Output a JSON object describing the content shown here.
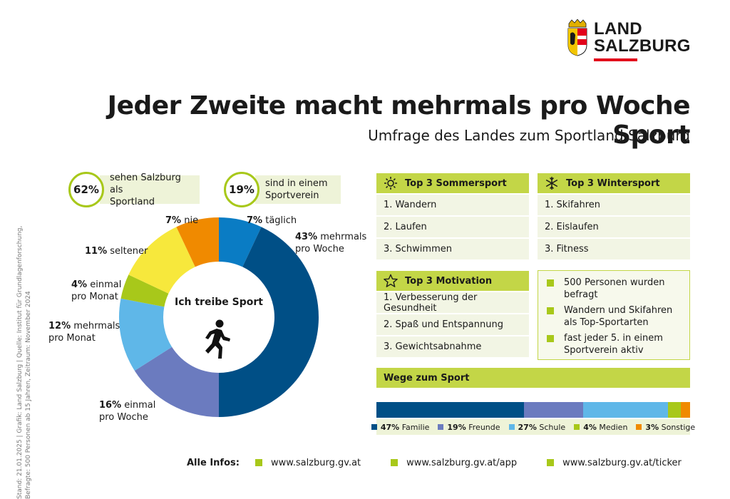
{
  "logo": {
    "line1": "LAND",
    "line2": "SALZBURG"
  },
  "header": {
    "title": "Jeder Zweite macht mehrmals pro Woche Sport",
    "subtitle": "Umfrage des Landes zum Sportland Salzburg"
  },
  "credit": {
    "line1": "Stand: 21.01.2025 | Grafik: Land Salzburg | Quelle: Institut für Grundlagenforschung,",
    "line2": "Befragte: 500 Personen ab 15 Jahren, Zeitraum: November 2024"
  },
  "stats": [
    {
      "value": "62%",
      "text_line1": "sehen Salzburg als",
      "text_line2": "Sportland"
    },
    {
      "value": "19%",
      "text_line1": "sind in einem",
      "text_line2": "Sportverein"
    }
  ],
  "chart_data": [
    {
      "type": "pie",
      "title": "Ich treibe Sport",
      "unit": "%",
      "categories": [
        "täglich",
        "mehrmals pro Woche",
        "einmal pro Woche",
        "mehrmals pro Monat",
        "einmal pro Monat",
        "seltener",
        "nie"
      ],
      "values": [
        7,
        43,
        16,
        12,
        4,
        11,
        7
      ],
      "colors": [
        "#0a7cc4",
        "#004f86",
        "#6b7bbf",
        "#5fb7e8",
        "#a8c81a",
        "#f7e83c",
        "#f08a00"
      ],
      "labels": [
        {
          "pct": "7%",
          "line1": "täglich",
          "line2": ""
        },
        {
          "pct": "43%",
          "line1": "mehrmals",
          "line2": "pro Woche"
        },
        {
          "pct": "16%",
          "line1": "einmal",
          "line2": "pro Woche"
        },
        {
          "pct": "12%",
          "line1": "mehrmals",
          "line2": "pro Monat"
        },
        {
          "pct": "4%",
          "line1": "einmal",
          "line2": "pro Monat"
        },
        {
          "pct": "11%",
          "line1": "seltener",
          "line2": ""
        },
        {
          "pct": "7%",
          "line1": "nie",
          "line2": ""
        }
      ]
    },
    {
      "type": "bar",
      "orientation": "horizontal-stacked",
      "title": "Wege zum Sport",
      "unit": "%",
      "categories": [
        "Familie",
        "Freunde",
        "Schule",
        "Medien",
        "Sonstige"
      ],
      "values": [
        47,
        19,
        27,
        4,
        3
      ],
      "colors": [
        "#004f86",
        "#6b7bbf",
        "#5fb7e8",
        "#a8c81a",
        "#f08a00"
      ],
      "legend_pct": [
        "47%",
        "19%",
        "27%",
        "4%",
        "3%"
      ]
    }
  ],
  "sommer": {
    "title": "Top 3 Sommersport",
    "items": [
      "1. Wandern",
      "2. Laufen",
      "3. Schwimmen"
    ]
  },
  "winter": {
    "title": "Top 3 Wintersport",
    "items": [
      "1. Skifahren",
      "2. Eislaufen",
      "3. Fitness"
    ]
  },
  "motivation": {
    "title": "Top 3 Motivation",
    "items": [
      "1. Verbesserung der Gesundheit",
      "2. Spaß und Entspannung",
      "3. Gewichtsabnahme"
    ]
  },
  "facts": [
    {
      "line1": "500 Personen wurden",
      "line2": "befragt"
    },
    {
      "line1": "Wandern und Skifahren",
      "line2": "als Top-Sportarten"
    },
    {
      "line1": "fast jeder 5. in einem",
      "line2": "Sportverein aktiv"
    }
  ],
  "footer": {
    "label": "Alle Infos:",
    "links": [
      "www.salzburg.gv.at",
      "www.salzburg.gv.at/app",
      "www.salzburg.gv.at/ticker"
    ]
  },
  "icons": [
    "crest-icon",
    "sun-icon",
    "snowflake-icon",
    "star-icon",
    "runner-icon"
  ]
}
